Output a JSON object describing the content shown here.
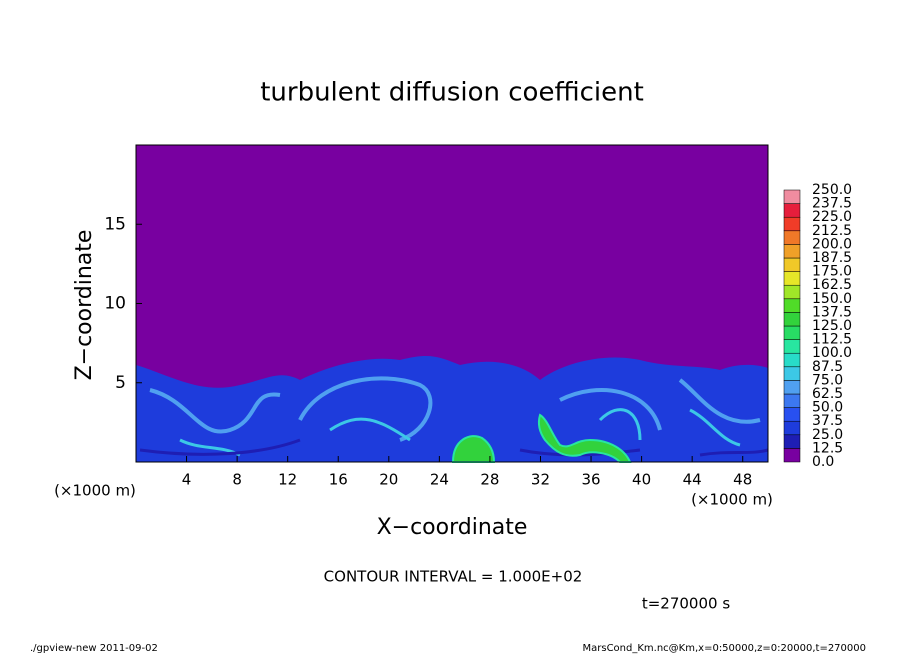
{
  "chart_data": {
    "type": "contour",
    "title": "turbulent diffusion coefficient",
    "x_label": "X−coordinate",
    "y_label": "Z−coordinate",
    "x_unit": "(×1000 m)",
    "y_unit": "(×1000 m)",
    "xlim": [
      0,
      50
    ],
    "xticks": [
      4,
      8,
      12,
      16,
      20,
      24,
      28,
      32,
      36,
      40,
      44,
      48
    ],
    "ylim": [
      0,
      20
    ],
    "yticks": [
      5,
      10,
      15
    ],
    "colorbar": {
      "levels": [
        {
          "value": 0,
          "label": "0.0"
        },
        12.5,
        {
          "value": 25,
          "label": "25.0"
        },
        37.5,
        {
          "value": 50,
          "label": "50.0"
        },
        62.5,
        {
          "value": 75,
          "label": "75.0"
        },
        87.5,
        {
          "value": 100,
          "label": "100.0"
        },
        112.5,
        {
          "value": 125,
          "label": "125.0"
        },
        137.5,
        {
          "value": 150,
          "label": "150.0"
        },
        162.5,
        {
          "value": 175,
          "label": "175.0"
        },
        187.5,
        {
          "value": 200,
          "label": "200.0"
        },
        212.5,
        {
          "value": 225,
          "label": "225.0"
        },
        237.5,
        {
          "value": 250,
          "label": "250.0"
        }
      ],
      "colors": [
        "#7800a0",
        "#1e1eb4",
        "#1e3cdc",
        "#2850f0",
        "#3c78f0",
        "#50a0f0",
        "#3cc8e6",
        "#28dcc8",
        "#28e6a0",
        "#28dc64",
        "#32d23c",
        "#50dc28",
        "#a0e628",
        "#e6e628",
        "#f0c828",
        "#f0a028",
        "#f07828",
        "#f03c28",
        "#e61e3c",
        "#f08ca0"
      ]
    },
    "annotation": "CONTOUR INTERVAL = 1.000E+02",
    "time_label": "t=270000 s",
    "footer_left": "./gpview-new   2011-09-02",
    "footer_right": "MarsCond_Km.nc@Km,x=0:50000,z=0:20000,t=270000"
  }
}
